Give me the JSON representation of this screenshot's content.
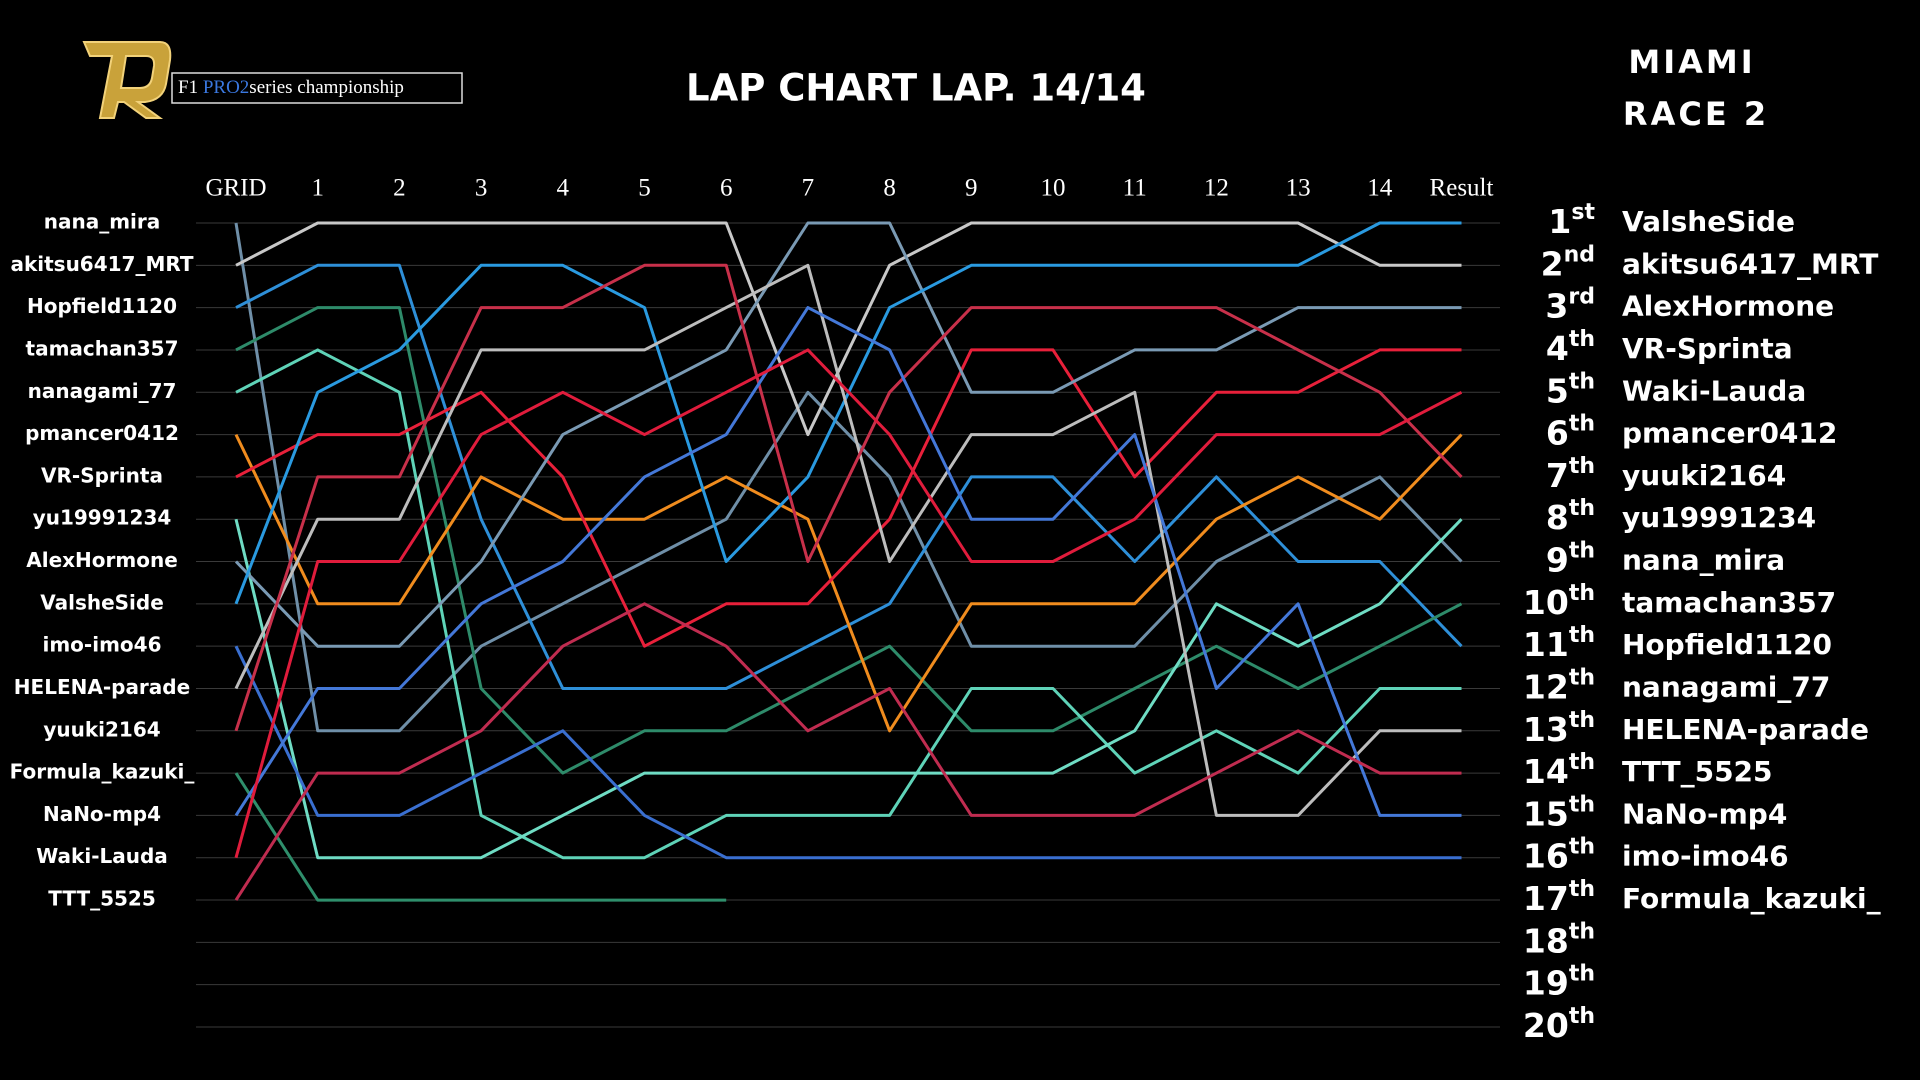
{
  "logo": {
    "f1": "F1",
    "pro2": "PRO2",
    "rest": "series  championship"
  },
  "event": {
    "venue": "MIAMI",
    "race": "RACE 2"
  },
  "chart_data": {
    "type": "line",
    "title": "LAP CHART  LAP. 14/14",
    "categories": [
      "GRID",
      "1",
      "2",
      "3",
      "4",
      "5",
      "6",
      "7",
      "8",
      "9",
      "10",
      "11",
      "12",
      "13",
      "14",
      "Result"
    ],
    "ylim": [
      1,
      20
    ],
    "y_inverted": true,
    "grid": true,
    "yticks": [
      {
        "value": 1,
        "label": "1st"
      },
      {
        "value": 2,
        "label": "2nd"
      },
      {
        "value": 3,
        "label": "3rd"
      },
      {
        "value": 4,
        "label": "4th"
      },
      {
        "value": 5,
        "label": "5th"
      },
      {
        "value": 6,
        "label": "6th"
      },
      {
        "value": 7,
        "label": "7th"
      },
      {
        "value": 8,
        "label": "8th"
      },
      {
        "value": 9,
        "label": "9th"
      },
      {
        "value": 10,
        "label": "10th"
      },
      {
        "value": 11,
        "label": "11th"
      },
      {
        "value": 12,
        "label": "12th"
      },
      {
        "value": 13,
        "label": "13th"
      },
      {
        "value": 14,
        "label": "14th"
      },
      {
        "value": 15,
        "label": "15th"
      },
      {
        "value": 16,
        "label": "16th"
      },
      {
        "value": 17,
        "label": "17th"
      },
      {
        "value": 18,
        "label": "18th"
      },
      {
        "value": 19,
        "label": "19th"
      },
      {
        "value": 20,
        "label": "20th"
      }
    ],
    "results": [
      "ValsheSide",
      "akitsu6417_MRT",
      "AlexHormone",
      "VR-Sprinta",
      "Waki-Lauda",
      "pmancer0412",
      "yuuki2164",
      "yu19991234",
      "nana_mira",
      "tamachan357",
      "Hopfield1120",
      "nanagami_77",
      "HELENA-parade",
      "TTT_5525",
      "NaNo-mp4",
      "imo-imo46",
      "Formula_kazuki_"
    ],
    "series": [
      {
        "name": "nana_mira",
        "color": "#6f8fa8",
        "values": [
          1,
          13,
          13,
          11,
          10,
          9,
          8,
          5,
          7,
          11,
          11,
          11,
          9,
          8,
          7,
          9
        ]
      },
      {
        "name": "akitsu6417_MRT",
        "color": "#c8c8c8",
        "values": [
          2,
          1,
          1,
          1,
          1,
          1,
          1,
          6,
          2,
          1,
          1,
          1,
          1,
          1,
          2,
          2
        ]
      },
      {
        "name": "Hopfield1120",
        "color": "#2e8fd8",
        "values": [
          3,
          2,
          2,
          8,
          12,
          12,
          12,
          11,
          10,
          7,
          7,
          9,
          7,
          9,
          9,
          11
        ]
      },
      {
        "name": "tamachan357",
        "color": "#2e8b6a",
        "values": [
          4,
          3,
          3,
          12,
          14,
          13,
          13,
          12,
          11,
          13,
          13,
          12,
          11,
          12,
          11,
          10
        ]
      },
      {
        "name": "nanagami_77",
        "color": "#5fd3b8",
        "values": [
          5,
          4,
          5,
          15,
          16,
          16,
          15,
          15,
          15,
          12,
          12,
          14,
          13,
          14,
          12,
          12
        ]
      },
      {
        "name": "pmancer0412",
        "color": "#f08c1e",
        "values": [
          6,
          10,
          10,
          7,
          8,
          8,
          7,
          8,
          13,
          10,
          10,
          10,
          8,
          7,
          8,
          6
        ]
      },
      {
        "name": "VR-Sprinta",
        "color": "#e8203a",
        "values": [
          7,
          6,
          6,
          5,
          7,
          11,
          10,
          10,
          8,
          4,
          4,
          7,
          5,
          5,
          4,
          4
        ]
      },
      {
        "name": "yu19991234",
        "color": "#6fdcc4",
        "values": [
          8,
          16,
          16,
          16,
          15,
          14,
          14,
          14,
          14,
          14,
          14,
          13,
          10,
          11,
          10,
          8
        ]
      },
      {
        "name": "AlexHormone",
        "color": "#7a9ab4",
        "values": [
          9,
          11,
          11,
          9,
          6,
          5,
          4,
          1,
          1,
          5,
          5,
          4,
          4,
          3,
          3,
          3
        ]
      },
      {
        "name": "ValsheSide",
        "color": "#2a9ae0",
        "values": [
          10,
          5,
          4,
          2,
          2,
          3,
          9,
          7,
          3,
          2,
          2,
          2,
          2,
          2,
          1,
          1
        ]
      },
      {
        "name": "imo-imo46",
        "color": "#3a6fd0",
        "values": [
          11,
          15,
          15,
          14,
          13,
          15,
          16,
          16,
          16,
          16,
          16,
          16,
          16,
          16,
          16,
          16
        ]
      },
      {
        "name": "HELENA-parade",
        "color": "#bdbdbd",
        "values": [
          12,
          8,
          8,
          4,
          4,
          4,
          3,
          2,
          9,
          6,
          6,
          5,
          15,
          15,
          13,
          13
        ]
      },
      {
        "name": "yuuki2164",
        "color": "#c8304a",
        "values": [
          13,
          7,
          7,
          3,
          3,
          2,
          2,
          9,
          5,
          3,
          3,
          3,
          3,
          4,
          5,
          7
        ]
      },
      {
        "name": "Formula_kazuki_",
        "color": "#2f8f6c",
        "values": [
          14,
          17,
          17,
          17,
          17,
          17,
          17,
          null,
          null,
          null,
          null,
          null,
          null,
          null,
          null,
          null
        ]
      },
      {
        "name": "NaNo-mp4",
        "color": "#4478d8",
        "values": [
          15,
          12,
          12,
          10,
          9,
          7,
          6,
          3,
          4,
          8,
          8,
          6,
          12,
          10,
          15,
          15
        ]
      },
      {
        "name": "Waki-Lauda",
        "color": "#e01c3c",
        "values": [
          16,
          9,
          9,
          6,
          5,
          6,
          5,
          4,
          6,
          9,
          9,
          8,
          6,
          6,
          6,
          5
        ]
      },
      {
        "name": "TTT_5525",
        "color": "#c02c50",
        "values": [
          17,
          14,
          14,
          13,
          11,
          10,
          11,
          13,
          12,
          15,
          15,
          15,
          14,
          13,
          14,
          14
        ]
      }
    ]
  }
}
